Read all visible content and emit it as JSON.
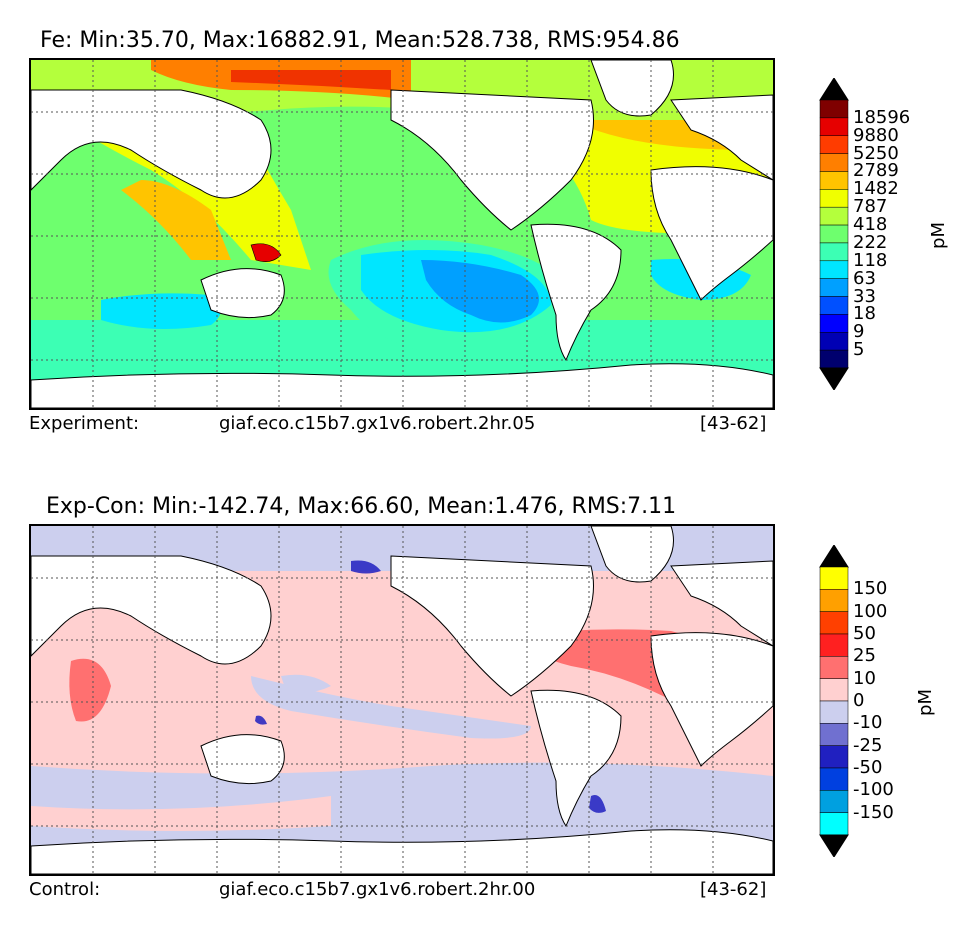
{
  "panels": [
    {
      "title": "Fe: Min:35.70, Max:16882.91, Mean:528.738, RMS:954.86",
      "footer_left_label": "Experiment:",
      "footer_case": "giaf.eco.c15b7.gx1v6.robert.2hr.05",
      "footer_years": "[43-62]",
      "colorbar": {
        "unit": "pM",
        "ticks": [
          "18596",
          "9880",
          "5250",
          "2789",
          "1482",
          "787",
          "418",
          "222",
          "118",
          "63",
          "33",
          "18",
          "9",
          "5"
        ],
        "colors": [
          "#000000",
          "#7f0000",
          "#e60000",
          "#ff3c00",
          "#ff7f00",
          "#ffc400",
          "#f0ff00",
          "#b4ff3c",
          "#6eff6e",
          "#3cffb4",
          "#00e6ff",
          "#00a0ff",
          "#0050ff",
          "#0000ff",
          "#0000b4",
          "#00006e",
          "#000000"
        ]
      }
    },
    {
      "title": "Exp-Con: Min:-142.74, Max:66.60, Mean:1.476, RMS:7.11",
      "footer_left_label": "Control:",
      "footer_case": "giaf.eco.c15b7.gx1v6.robert.2hr.00",
      "footer_years": "[43-62]",
      "colorbar": {
        "unit": "pM",
        "ticks": [
          "150",
          "100",
          "50",
          "25",
          "10",
          "0",
          "-10",
          "-25",
          "-50",
          "-100",
          "-150"
        ],
        "colors": [
          "#000000",
          "#ffff00",
          "#ffa000",
          "#ff4000",
          "#ff2020",
          "#ff7070",
          "#ffd0d0",
          "#cccfee",
          "#7070d0",
          "#2020c0",
          "#0040e0",
          "#00a0e0",
          "#00ffff",
          "#000000"
        ]
      }
    }
  ]
}
